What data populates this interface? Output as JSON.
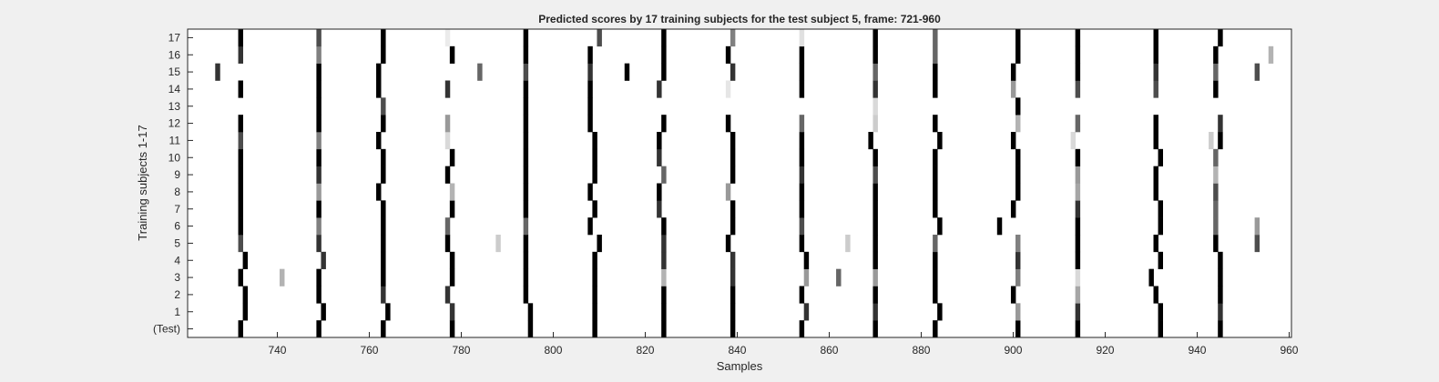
{
  "chart_data": {
    "type": "heatmap",
    "title": "Predicted scores by 17 training subjects for the test subject 5, frame: 721-960",
    "xlabel": "Samples",
    "ylabel": "Training subjects 1-17",
    "xlim": [
      721,
      960
    ],
    "x_ticks": [
      740,
      760,
      780,
      800,
      820,
      840,
      860,
      880,
      900,
      920,
      940,
      960
    ],
    "row_labels": [
      "(Test)",
      "1",
      "2",
      "3",
      "4",
      "5",
      "6",
      "7",
      "8",
      "9",
      "10",
      "11",
      "12",
      "13",
      "14",
      "15",
      "16",
      "17"
    ],
    "grid": false,
    "colormap": "gray (white = 0, black = 1)",
    "value_note": "each value is the darkness (0-1) of the cell at that sample; unlisted cells are 0",
    "rows": [
      {
        "label": "(Test)",
        "cells": [
          [
            732,
            1
          ],
          [
            749,
            1
          ],
          [
            763,
            1
          ],
          [
            778,
            1
          ],
          [
            795,
            1
          ],
          [
            809,
            1
          ],
          [
            824,
            1
          ],
          [
            839,
            1
          ],
          [
            854,
            1
          ],
          [
            870,
            1
          ],
          [
            883,
            1
          ],
          [
            901,
            1
          ],
          [
            914,
            1
          ],
          [
            932,
            1
          ],
          [
            945,
            1
          ]
        ]
      },
      {
        "label": "1",
        "cells": [
          [
            733,
            1
          ],
          [
            750,
            1
          ],
          [
            764,
            1
          ],
          [
            778,
            0.8
          ],
          [
            795,
            1
          ],
          [
            809,
            1
          ],
          [
            824,
            1
          ],
          [
            839,
            1
          ],
          [
            855,
            0.8
          ],
          [
            870,
            0.8
          ],
          [
            884,
            1
          ],
          [
            901,
            0.4
          ],
          [
            914,
            0.8
          ],
          [
            932,
            1
          ],
          [
            945,
            0.8
          ]
        ]
      },
      {
        "label": "2",
        "cells": [
          [
            733,
            1
          ],
          [
            749,
            1
          ],
          [
            763,
            0.8
          ],
          [
            777,
            0.8
          ],
          [
            794,
            1
          ],
          [
            809,
            1
          ],
          [
            824,
            1
          ],
          [
            839,
            1
          ],
          [
            854,
            1
          ],
          [
            870,
            1
          ],
          [
            883,
            1
          ],
          [
            900,
            1
          ],
          [
            914,
            0.35
          ],
          [
            931,
            1
          ],
          [
            945,
            1
          ]
        ]
      },
      {
        "label": "3",
        "cells": [
          [
            732,
            1
          ],
          [
            741,
            0.3
          ],
          [
            749,
            1
          ],
          [
            763,
            1
          ],
          [
            778,
            1
          ],
          [
            794,
            1
          ],
          [
            809,
            1
          ],
          [
            824,
            0.3
          ],
          [
            839,
            0.8
          ],
          [
            855,
            0.4
          ],
          [
            862,
            0.6
          ],
          [
            870,
            0.4
          ],
          [
            883,
            1
          ],
          [
            901,
            0.5
          ],
          [
            914,
            0.15
          ],
          [
            930,
            1
          ],
          [
            945,
            1
          ]
        ]
      },
      {
        "label": "4",
        "cells": [
          [
            733,
            1
          ],
          [
            750,
            0.8
          ],
          [
            763,
            1
          ],
          [
            778,
            1
          ],
          [
            794,
            1
          ],
          [
            809,
            1
          ],
          [
            824,
            0.8
          ],
          [
            839,
            0.8
          ],
          [
            855,
            1
          ],
          [
            870,
            1
          ],
          [
            883,
            1
          ],
          [
            901,
            0.8
          ],
          [
            914,
            1
          ],
          [
            932,
            1
          ],
          [
            945,
            1
          ]
        ]
      },
      {
        "label": "5",
        "cells": [
          [
            732,
            0.7
          ],
          [
            749,
            0.8
          ],
          [
            763,
            1
          ],
          [
            777,
            1
          ],
          [
            788,
            0.2
          ],
          [
            794,
            1
          ],
          [
            810,
            1
          ],
          [
            824,
            0.8
          ],
          [
            838,
            1
          ],
          [
            854,
            1
          ],
          [
            864,
            0.2
          ],
          [
            870,
            1
          ],
          [
            883,
            0.6
          ],
          [
            901,
            0.5
          ],
          [
            914,
            1
          ],
          [
            931,
            1
          ],
          [
            944,
            1
          ],
          [
            953,
            0.7
          ]
        ]
      },
      {
        "label": "6",
        "cells": [
          [
            732,
            1
          ],
          [
            749,
            0.5
          ],
          [
            763,
            1
          ],
          [
            777,
            0.6
          ],
          [
            794,
            0.6
          ],
          [
            808,
            1
          ],
          [
            824,
            1
          ],
          [
            839,
            1
          ],
          [
            854,
            0.7
          ],
          [
            870,
            1
          ],
          [
            884,
            1
          ],
          [
            897,
            1
          ],
          [
            914,
            1
          ],
          [
            932,
            1
          ],
          [
            944,
            0.6
          ],
          [
            953,
            0.4
          ]
        ]
      },
      {
        "label": "7",
        "cells": [
          [
            732,
            1
          ],
          [
            749,
            1
          ],
          [
            763,
            1
          ],
          [
            778,
            1
          ],
          [
            794,
            1
          ],
          [
            809,
            1
          ],
          [
            823,
            0.8
          ],
          [
            839,
            1
          ],
          [
            854,
            1
          ],
          [
            870,
            1
          ],
          [
            883,
            1
          ],
          [
            900,
            1
          ],
          [
            914,
            0.8
          ],
          [
            932,
            1
          ],
          [
            944,
            0.6
          ]
        ]
      },
      {
        "label": "8",
        "cells": [
          [
            732,
            1
          ],
          [
            749,
            0.4
          ],
          [
            762,
            1
          ],
          [
            778,
            0.3
          ],
          [
            794,
            1
          ],
          [
            808,
            1
          ],
          [
            823,
            1
          ],
          [
            838,
            0.4
          ],
          [
            854,
            1
          ],
          [
            870,
            1
          ],
          [
            883,
            1
          ],
          [
            901,
            1
          ],
          [
            914,
            0.35
          ],
          [
            931,
            1
          ],
          [
            944,
            0.7
          ]
        ]
      },
      {
        "label": "9",
        "cells": [
          [
            732,
            1
          ],
          [
            749,
            0.8
          ],
          [
            763,
            1
          ],
          [
            777,
            1
          ],
          [
            794,
            1
          ],
          [
            809,
            1
          ],
          [
            824,
            0.6
          ],
          [
            839,
            1
          ],
          [
            854,
            0.8
          ],
          [
            870,
            0.7
          ],
          [
            883,
            1
          ],
          [
            901,
            1
          ],
          [
            914,
            0.4
          ],
          [
            931,
            1
          ],
          [
            944,
            0.3
          ]
        ]
      },
      {
        "label": "10",
        "cells": [
          [
            732,
            1
          ],
          [
            749,
            1
          ],
          [
            763,
            1
          ],
          [
            778,
            1
          ],
          [
            794,
            1
          ],
          [
            809,
            1
          ],
          [
            823,
            0.8
          ],
          [
            839,
            1
          ],
          [
            854,
            1
          ],
          [
            870,
            1
          ],
          [
            883,
            1
          ],
          [
            901,
            1
          ],
          [
            914,
            1
          ],
          [
            932,
            1
          ],
          [
            944,
            0.6
          ]
        ]
      },
      {
        "label": "11",
        "cells": [
          [
            732,
            0.7
          ],
          [
            749,
            0.5
          ],
          [
            762,
            1
          ],
          [
            777,
            0.15
          ],
          [
            794,
            1
          ],
          [
            809,
            1
          ],
          [
            823,
            1
          ],
          [
            839,
            1
          ],
          [
            854,
            1
          ],
          [
            869,
            1
          ],
          [
            884,
            1
          ],
          [
            900,
            1
          ],
          [
            913,
            0.15
          ],
          [
            931,
            1
          ],
          [
            943,
            0.2
          ],
          [
            945,
            1
          ]
        ]
      },
      {
        "label": "12",
        "cells": [
          [
            732,
            1
          ],
          [
            749,
            1
          ],
          [
            763,
            1
          ],
          [
            777,
            0.4
          ],
          [
            794,
            1
          ],
          [
            808,
            1
          ],
          [
            824,
            1
          ],
          [
            838,
            1
          ],
          [
            854,
            0.6
          ],
          [
            870,
            0.2
          ],
          [
            883,
            1
          ],
          [
            901,
            0.3
          ],
          [
            914,
            0.6
          ],
          [
            931,
            1
          ],
          [
            945,
            0.8
          ]
        ]
      },
      {
        "label": "13",
        "cells": [
          [
            749,
            1
          ],
          [
            763,
            0.7
          ],
          [
            794,
            1
          ],
          [
            808,
            1
          ],
          [
            870,
            0.15
          ],
          [
            901,
            1
          ]
        ]
      },
      {
        "label": "14",
        "cells": [
          [
            732,
            1
          ],
          [
            749,
            1
          ],
          [
            762,
            1
          ],
          [
            777,
            0.8
          ],
          [
            794,
            1
          ],
          [
            808,
            1
          ],
          [
            823,
            0.8
          ],
          [
            838,
            0.1
          ],
          [
            854,
            1
          ],
          [
            870,
            0.8
          ],
          [
            883,
            1
          ],
          [
            900,
            0.4
          ],
          [
            914,
            0.7
          ],
          [
            931,
            0.7
          ],
          [
            944,
            1
          ]
        ]
      },
      {
        "label": "15",
        "cells": [
          [
            727,
            0.8
          ],
          [
            749,
            1
          ],
          [
            762,
            1
          ],
          [
            784,
            0.6
          ],
          [
            794,
            0.7
          ],
          [
            808,
            0.8
          ],
          [
            816,
            1
          ],
          [
            824,
            1
          ],
          [
            839,
            0.8
          ],
          [
            854,
            1
          ],
          [
            870,
            0.6
          ],
          [
            883,
            1
          ],
          [
            900,
            1
          ],
          [
            914,
            1
          ],
          [
            931,
            0.8
          ],
          [
            944,
            0.6
          ],
          [
            953,
            0.7
          ]
        ]
      },
      {
        "label": "16",
        "cells": [
          [
            732,
            0.8
          ],
          [
            749,
            0.5
          ],
          [
            763,
            1
          ],
          [
            778,
            1
          ],
          [
            794,
            1
          ],
          [
            808,
            1
          ],
          [
            824,
            1
          ],
          [
            838,
            1
          ],
          [
            854,
            1
          ],
          [
            870,
            1
          ],
          [
            883,
            0.6
          ],
          [
            901,
            1
          ],
          [
            914,
            1
          ],
          [
            931,
            1
          ],
          [
            944,
            1
          ],
          [
            956,
            0.3
          ]
        ]
      },
      {
        "label": "17",
        "cells": [
          [
            732,
            1
          ],
          [
            749,
            0.7
          ],
          [
            763,
            1
          ],
          [
            777,
            0.08
          ],
          [
            794,
            1
          ],
          [
            810,
            0.7
          ],
          [
            824,
            1
          ],
          [
            839,
            0.5
          ],
          [
            854,
            0.12
          ],
          [
            870,
            1
          ],
          [
            883,
            0.6
          ],
          [
            901,
            1
          ],
          [
            914,
            1
          ],
          [
            931,
            1
          ],
          [
            945,
            1
          ]
        ]
      }
    ]
  }
}
